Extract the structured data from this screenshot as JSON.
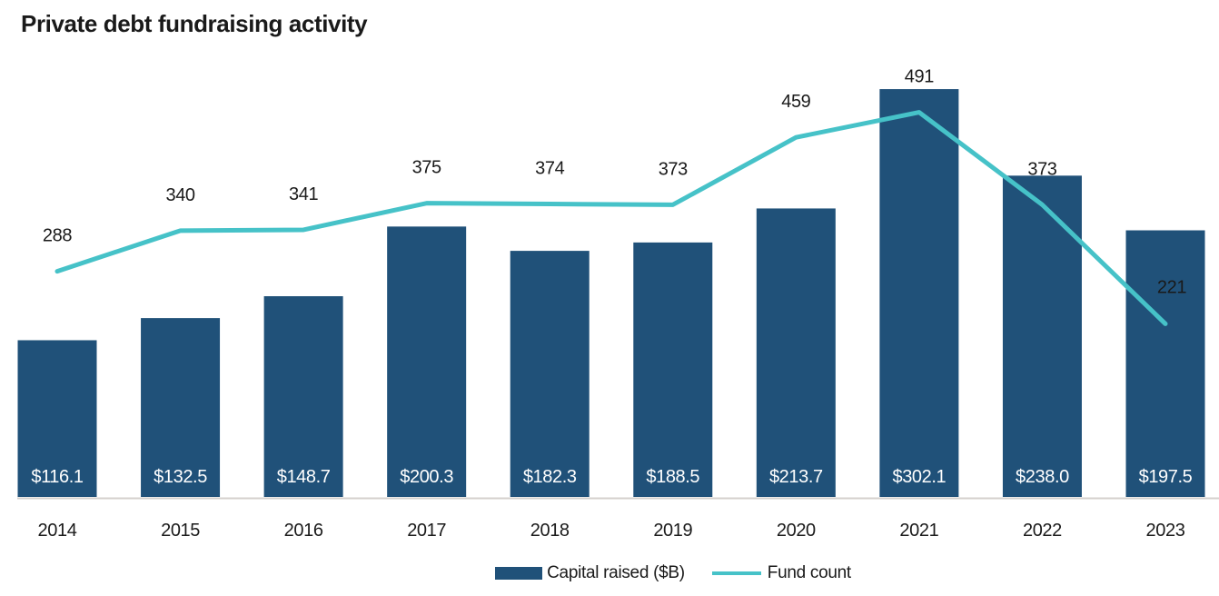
{
  "header": {
    "title": "Private debt fundraising activity"
  },
  "chart_data": {
    "type": "combo",
    "title": "Private debt fundraising activity",
    "categories": [
      "2014",
      "2015",
      "2016",
      "2017",
      "2018",
      "2019",
      "2020",
      "2021",
      "2022",
      "2023"
    ],
    "series": [
      {
        "name": "Capital raised ($B)",
        "type": "bar",
        "color": "#205179",
        "values": [
          116.1,
          132.5,
          148.7,
          200.3,
          182.3,
          188.5,
          213.7,
          302.1,
          238.0,
          197.5
        ],
        "labels": [
          "$116.1",
          "$132.5",
          "$148.7",
          "$200.3",
          "$182.3",
          "$188.5",
          "$213.7",
          "$302.1",
          "$238.0",
          "$197.5"
        ],
        "label_color": "#FFFFFF",
        "label_position": "inside-bottom"
      },
      {
        "name": "Fund count",
        "type": "line",
        "color": "#46C2C8",
        "values": [
          288,
          340,
          341,
          375,
          374,
          373,
          459,
          491,
          373,
          221
        ],
        "labels": [
          "288",
          "340",
          "341",
          "375",
          "374",
          "373",
          "459",
          "491",
          "373",
          "221"
        ],
        "label_color": "#1A1A1A",
        "last_label_color": "#FFFFFF",
        "label_position": "above"
      }
    ],
    "axes": {
      "x_labels": [
        "2014",
        "2015",
        "2016",
        "2017",
        "2018",
        "2019",
        "2020",
        "2021",
        "2022",
        "2023"
      ],
      "x_label_color": "#1A1A1A",
      "baseline_color": "#D5D1CD",
      "y_axis_visible": false,
      "gridlines": false,
      "bar_value_range": [
        0,
        302.1
      ],
      "line_value_range": [
        0,
        491
      ]
    },
    "legend_position": "bottom-center"
  },
  "legend": {
    "items": [
      {
        "label": "Capital raised ($B)",
        "swatch": "bar",
        "color": "#205179"
      },
      {
        "label": "Fund count",
        "swatch": "line",
        "color": "#46C2C8"
      }
    ]
  }
}
